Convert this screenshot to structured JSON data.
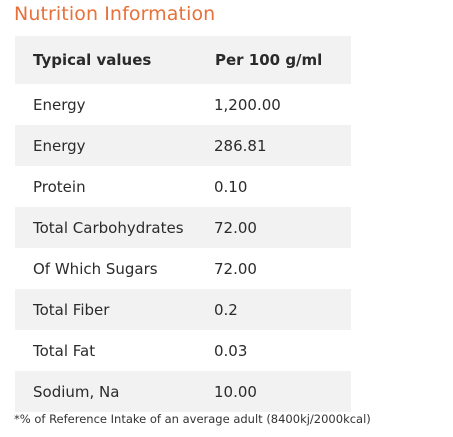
{
  "title": "Nutrition Information",
  "table": {
    "headers": [
      "Typical values",
      "Per 100 g/ml"
    ],
    "rows": [
      {
        "name": "Energy",
        "value": "1,200.00"
      },
      {
        "name": "Energy",
        "value": "286.81"
      },
      {
        "name": "Protein",
        "value": "0.10"
      },
      {
        "name": "Total Carbohydrates",
        "value": "72.00"
      },
      {
        "name": "Of Which Sugars",
        "value": "72.00"
      },
      {
        "name": "Total Fiber",
        "value": "0.2"
      },
      {
        "name": "Total Fat",
        "value": "0.03"
      },
      {
        "name": "Sodium, Na",
        "value": "10.00"
      }
    ]
  },
  "footnote": "*% of Reference Intake of an average adult (8400kj/2000kcal)",
  "colors": {
    "title": "#e8703a",
    "shaded_row": "#f2f2f2"
  }
}
